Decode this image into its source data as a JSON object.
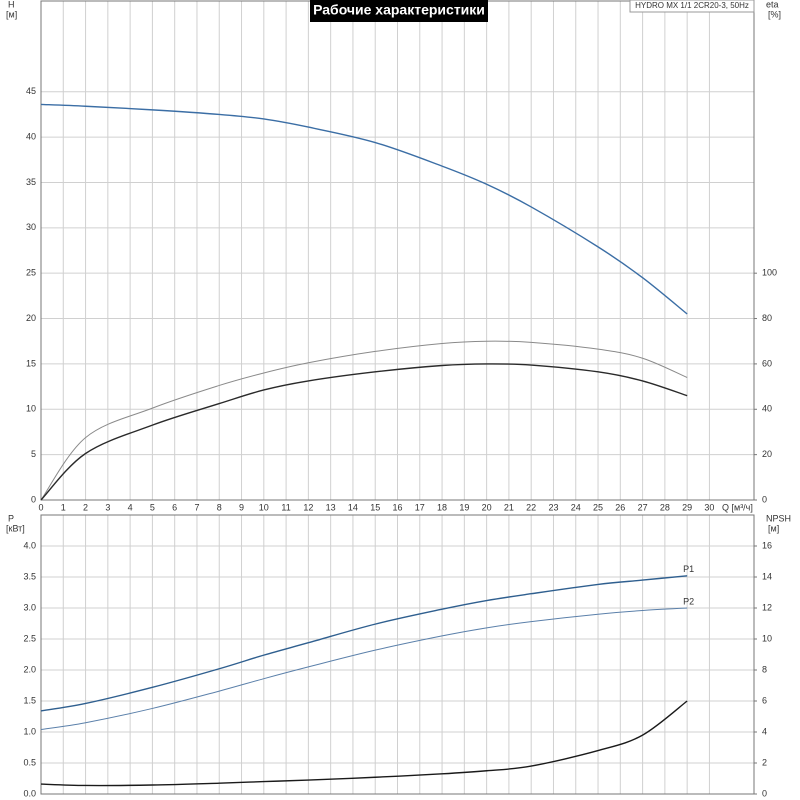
{
  "chart_data": [
    {
      "type": "line",
      "title": "Рабочие характеристики",
      "subtitle": "HYDRO MX 1/1 2CR20-3, 50Hz",
      "ylabel": "H",
      "yunit": "[м]",
      "y2label": "eta",
      "y2unit": "[%]",
      "xlabel": "Q [м³/ч]",
      "x": [
        0,
        2,
        5,
        8,
        10,
        12,
        15,
        18,
        20,
        22,
        25,
        27,
        29
      ],
      "xlim": [
        0,
        32
      ],
      "xticks": [
        0,
        1,
        2,
        3,
        4,
        5,
        6,
        7,
        8,
        9,
        10,
        11,
        12,
        13,
        14,
        15,
        16,
        17,
        18,
        19,
        20,
        21,
        22,
        23,
        24,
        25,
        26,
        27,
        28,
        29,
        30
      ],
      "ylim": [
        0,
        55
      ],
      "yticks": [
        0,
        5,
        10,
        15,
        20,
        25,
        30,
        35,
        40,
        45
      ],
      "y2lim": [
        0,
        220
      ],
      "y2ticks": [
        0,
        20,
        40,
        60,
        80,
        100
      ],
      "grid": true,
      "series": [
        {
          "color": "#3b6ea5",
          "width": 1.4,
          "values": [
            43.6,
            43.4,
            43.0,
            42.5,
            42.0,
            41.1,
            39.4,
            36.8,
            34.8,
            32.3,
            27.9,
            24.5,
            20.5
          ]
        },
        {
          "color": "#8a8a8a",
          "width": 1,
          "axis": "y2",
          "values": [
            0,
            27.5,
            40.5,
            50.5,
            56,
            60.5,
            65.5,
            69,
            70,
            69.5,
            66.5,
            62.5,
            54
          ]
        },
        {
          "color": "#2a2a2a",
          "width": 1.4,
          "axis": "y2",
          "values": [
            0,
            20.5,
            33,
            42.5,
            48.5,
            52.5,
            56.5,
            59.3,
            60,
            59.5,
            56.5,
            52.5,
            46
          ]
        }
      ]
    },
    {
      "type": "line",
      "ylabel": "P",
      "yunit": "[кВт]",
      "y2label": "NPSH",
      "y2unit": "[м]",
      "x": [
        0,
        2,
        5,
        8,
        10,
        12,
        15,
        18,
        20,
        22,
        25,
        27,
        29
      ],
      "xlim": [
        0,
        32
      ],
      "ylim": [
        0,
        4.5
      ],
      "yticks": [
        {
          "value": 0,
          "label": "0.0"
        },
        0.5,
        {
          "value": 1,
          "label": "1.0"
        },
        1.5,
        {
          "value": 2,
          "label": "2.0"
        },
        2.5,
        {
          "value": 3,
          "label": "3.0"
        },
        3.5,
        {
          "value": 4,
          "label": "4.0"
        }
      ],
      "y2lim": [
        0,
        18
      ],
      "y2ticks": [
        0,
        2,
        4,
        6,
        8,
        10,
        12,
        14,
        16
      ],
      "grid": true,
      "series": [
        {
          "name": "P1",
          "color": "#2f5f8f",
          "width": 1.4,
          "values": [
            1.34,
            1.46,
            1.72,
            2.02,
            2.24,
            2.44,
            2.74,
            2.98,
            3.12,
            3.23,
            3.38,
            3.45,
            3.52
          ]
        },
        {
          "name": "P2",
          "color": "#5b80aa",
          "width": 1,
          "values": [
            1.04,
            1.15,
            1.38,
            1.66,
            1.86,
            2.05,
            2.32,
            2.55,
            2.68,
            2.78,
            2.9,
            2.96,
            3.0
          ]
        },
        {
          "color": "#1a1a1a",
          "width": 1.4,
          "axis": "y2",
          "values": [
            0.64,
            0.55,
            0.58,
            0.7,
            0.8,
            0.9,
            1.08,
            1.3,
            1.5,
            1.8,
            2.8,
            3.8,
            6.0
          ]
        }
      ]
    }
  ]
}
